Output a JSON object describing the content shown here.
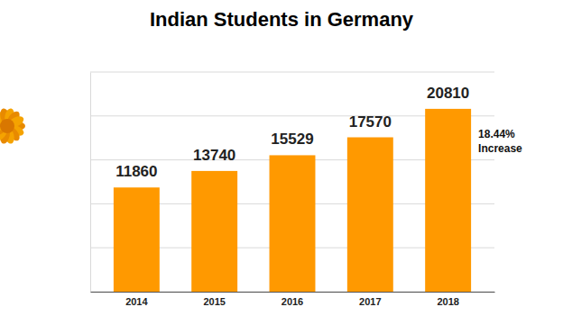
{
  "chart_data": {
    "type": "bar",
    "title": "Indian Students in Germany",
    "categories": [
      "2014",
      "2015",
      "2016",
      "2017",
      "2018"
    ],
    "values": [
      11860,
      13740,
      15529,
      17570,
      20810
    ],
    "color": "#ff9900",
    "ylim": [
      0,
      25000
    ],
    "yticks": [
      0,
      5000,
      10000,
      15000,
      20000,
      25000
    ],
    "grid": true,
    "data_labels": true,
    "tick_labels": "x",
    "annotation": "18.44% Increase"
  }
}
